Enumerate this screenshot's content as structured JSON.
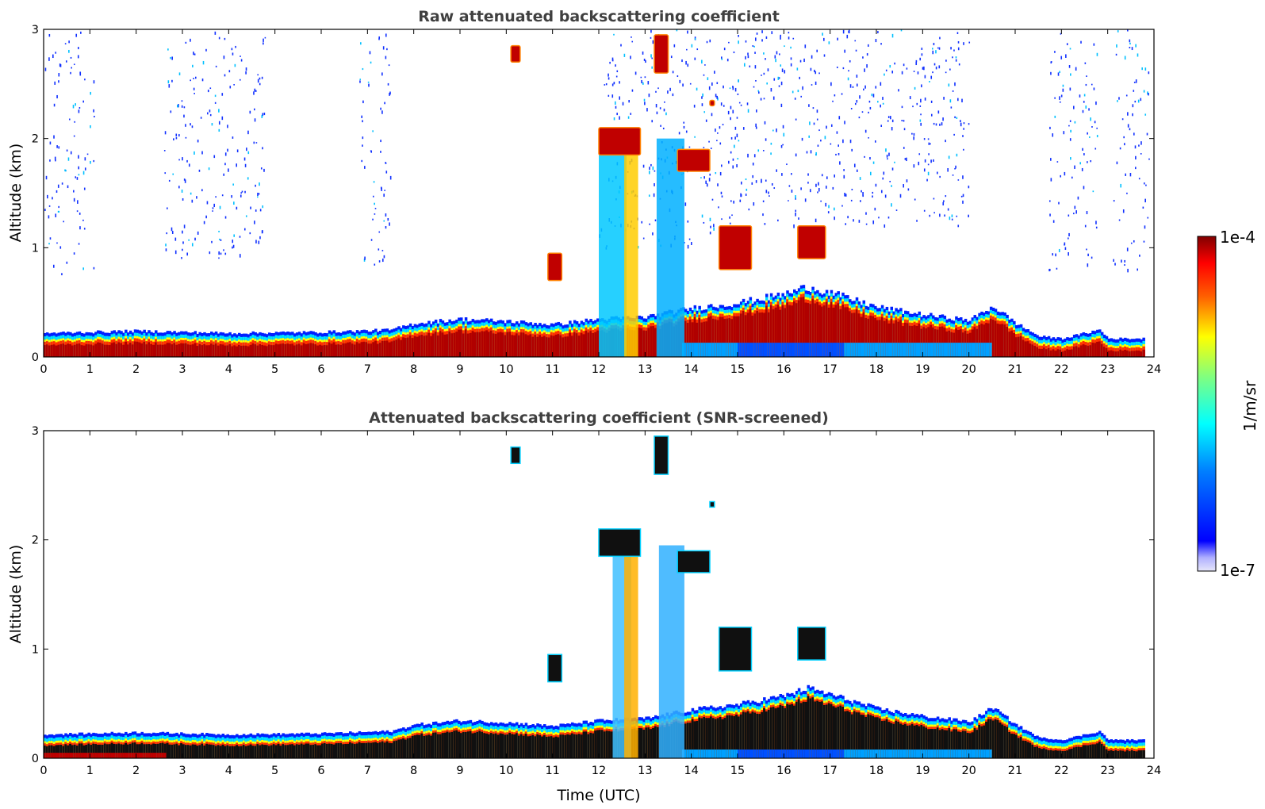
{
  "chart_data": [
    {
      "type": "heatmap",
      "title": "Raw attenuated backscattering coefficient",
      "xlabel": "",
      "ylabel": "Altitude (km)",
      "xlim": [
        0,
        24
      ],
      "ylim": [
        0,
        3
      ],
      "xticks": [
        "0",
        "1",
        "2",
        "3",
        "4",
        "5",
        "6",
        "7",
        "8",
        "9",
        "10",
        "11",
        "12",
        "13",
        "14",
        "15",
        "16",
        "17",
        "18",
        "19",
        "20",
        "21",
        "22",
        "23",
        "24"
      ],
      "yticks": [
        "0",
        "1",
        "2",
        "3"
      ],
      "boundary_layer_top_km": {
        "time_utc": [
          0,
          2,
          4,
          6,
          7.5,
          8,
          9,
          10,
          11,
          12,
          12.5,
          13,
          14,
          15,
          16,
          16.5,
          17,
          18,
          19,
          20,
          20.5,
          21,
          21.5,
          22,
          22.8,
          23,
          23.8
        ],
        "value": [
          0.19,
          0.21,
          0.19,
          0.2,
          0.22,
          0.28,
          0.32,
          0.3,
          0.27,
          0.32,
          0.33,
          0.34,
          0.42,
          0.47,
          0.55,
          0.62,
          0.56,
          0.43,
          0.36,
          0.31,
          0.44,
          0.28,
          0.16,
          0.14,
          0.22,
          0.14,
          0.14
        ]
      },
      "cloud_layers": [
        {
          "time_utc": [
            12.0,
            12.9
          ],
          "altitude_km": [
            1.85,
            2.1
          ]
        },
        {
          "time_utc": [
            13.7,
            14.4
          ],
          "altitude_km": [
            1.7,
            1.9
          ]
        },
        {
          "time_utc": [
            13.2,
            13.5
          ],
          "altitude_km": [
            2.6,
            2.95
          ]
        },
        {
          "time_utc": [
            16.3,
            16.9
          ],
          "altitude_km": [
            0.9,
            1.2
          ]
        },
        {
          "time_utc": [
            14.6,
            15.3
          ],
          "altitude_km": [
            0.8,
            1.2
          ]
        },
        {
          "time_utc": [
            10.9,
            11.2
          ],
          "altitude_km": [
            0.7,
            0.95
          ]
        },
        {
          "time_utc": [
            10.1,
            10.3
          ],
          "altitude_km": [
            2.7,
            2.85
          ]
        },
        {
          "time_utc": [
            14.4,
            14.5
          ],
          "altitude_km": [
            2.3,
            2.35
          ]
        }
      ]
    },
    {
      "type": "heatmap",
      "title": "Attenuated backscattering coefficient (SNR-screened)",
      "xlabel": "Time (UTC)",
      "ylabel": "Altitude (km)",
      "xlim": [
        0,
        24
      ],
      "ylim": [
        0,
        3
      ],
      "xticks": [
        "0",
        "1",
        "2",
        "3",
        "4",
        "5",
        "6",
        "7",
        "8",
        "9",
        "10",
        "11",
        "12",
        "13",
        "14",
        "15",
        "16",
        "17",
        "18",
        "19",
        "20",
        "21",
        "22",
        "23",
        "24"
      ],
      "yticks": [
        "0",
        "1",
        "2",
        "3"
      ]
    }
  ],
  "colorbar": {
    "label": "1/m/sr",
    "max_label": "1e-4",
    "min_label": "1e-7",
    "colormap": "jet",
    "colors": [
      "#e6e6fa",
      "#0000ff",
      "#00ffff",
      "#ffff00",
      "#ff0000",
      "#800000"
    ]
  }
}
